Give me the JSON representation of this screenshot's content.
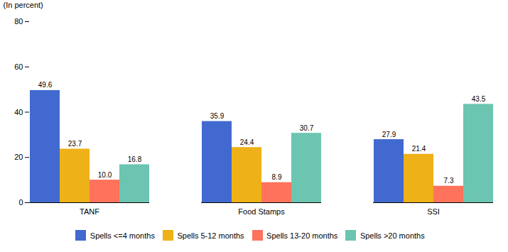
{
  "chart_data": {
    "type": "bar",
    "ylabel": "(In percent)",
    "categories": [
      "TANF",
      "Food Stamps",
      "SSI"
    ],
    "series": [
      {
        "name": "Spells <=4 months",
        "values": [
          49.6,
          35.9,
          27.9
        ],
        "value_labels": [
          "49.6",
          "35.9",
          "27.9"
        ]
      },
      {
        "name": "Spells 5-12 months",
        "values": [
          23.7,
          24.4,
          21.4
        ],
        "value_labels": [
          "23.7",
          "24.4",
          "21.4"
        ]
      },
      {
        "name": "Spells 13-20 months",
        "values": [
          10.0,
          8.9,
          7.3
        ],
        "value_labels": [
          "10.0",
          "8.9",
          "7.3"
        ]
      },
      {
        "name": "Spells >20 months",
        "values": [
          16.8,
          30.7,
          43.5
        ],
        "value_labels": [
          "16.8",
          "30.7",
          "43.5"
        ]
      }
    ],
    "ylim": [
      0,
      80
    ],
    "yticks": [
      0,
      20,
      40,
      60,
      80
    ],
    "grid": false,
    "data_labels": true,
    "legend": "bottom"
  }
}
